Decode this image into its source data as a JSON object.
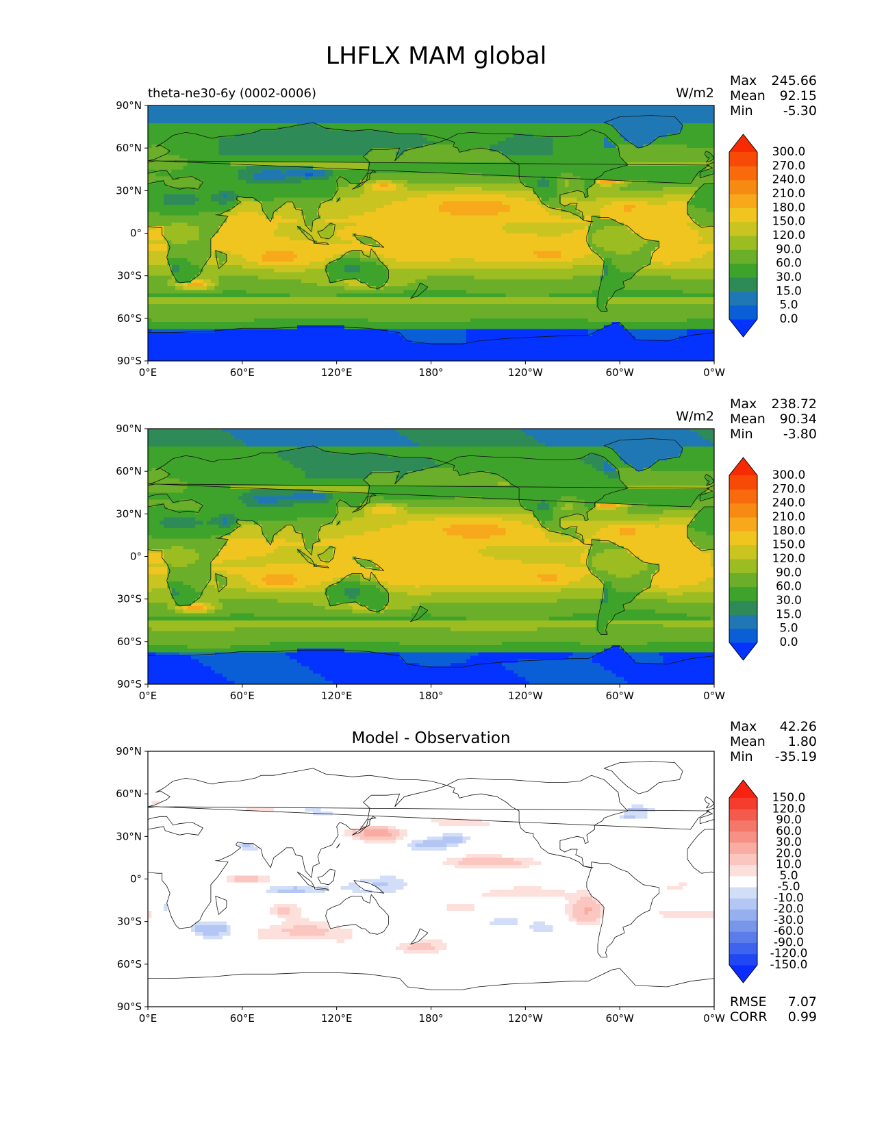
{
  "title": "LHFLX MAM global",
  "chart_data": [
    {
      "type": "heatmap",
      "panel": "test",
      "label": "theta-ne30-6y (0002-0006)",
      "title": "",
      "units": "W/m2",
      "stats": {
        "max_label": "Max",
        "max": "245.66",
        "mean_label": "Mean",
        "mean": "92.15",
        "min_label": "Min",
        "min": "-5.30"
      },
      "xticks": [
        "0°E",
        "60°E",
        "120°E",
        "180°",
        "120°W",
        "60°W",
        "0°W"
      ],
      "yticks": [
        "90°N",
        "60°N",
        "30°N",
        "0°",
        "30°S",
        "60°S",
        "90°S"
      ],
      "xlim": [
        0,
        360
      ],
      "ylim": [
        -90,
        90
      ],
      "colorbar": {
        "levels": [
          "0.0",
          "5.0",
          "15.0",
          "30.0",
          "60.0",
          "90.0",
          "120.0",
          "150.0",
          "180.0",
          "210.0",
          "240.0",
          "270.0",
          "300.0"
        ],
        "colors": [
          "#0432ff",
          "#0b5fd6",
          "#1f78b4",
          "#2e8b57",
          "#3ea32a",
          "#6aae2a",
          "#9cbd21",
          "#c9c41f",
          "#f0c520",
          "#f7a81b",
          "#f78a12",
          "#f86a0c",
          "#f74a06",
          "#f82a02"
        ]
      }
    },
    {
      "type": "heatmap",
      "panel": "reference",
      "label": "",
      "title": "",
      "units": "W/m2",
      "stats": {
        "max_label": "Max",
        "max": "238.72",
        "mean_label": "Mean",
        "mean": "90.34",
        "min_label": "Min",
        "min": "-3.80"
      },
      "xticks": [
        "0°E",
        "60°E",
        "120°E",
        "180°",
        "120°W",
        "60°W",
        "0°W"
      ],
      "yticks": [
        "90°N",
        "60°N",
        "30°N",
        "0°",
        "30°S",
        "60°S",
        "90°S"
      ],
      "xlim": [
        0,
        360
      ],
      "ylim": [
        -90,
        90
      ],
      "colorbar": {
        "levels": [
          "0.0",
          "5.0",
          "15.0",
          "30.0",
          "60.0",
          "90.0",
          "120.0",
          "150.0",
          "180.0",
          "210.0",
          "240.0",
          "270.0",
          "300.0"
        ],
        "colors": [
          "#0432ff",
          "#0b5fd6",
          "#1f78b4",
          "#2e8b57",
          "#3ea32a",
          "#6aae2a",
          "#9cbd21",
          "#c9c41f",
          "#f0c520",
          "#f7a81b",
          "#f78a12",
          "#f86a0c",
          "#f74a06",
          "#f82a02"
        ]
      }
    },
    {
      "type": "heatmap",
      "panel": "difference",
      "label": "",
      "title": "Model - Observation",
      "units": "",
      "stats": {
        "max_label": "Max",
        "max": "42.26",
        "mean_label": "Mean",
        "mean": "1.80",
        "min_label": "Min",
        "min": "-35.19"
      },
      "metrics": {
        "rmse_label": "RMSE",
        "rmse": "7.07",
        "corr_label": "CORR",
        "corr": "0.99"
      },
      "xticks": [
        "0°E",
        "60°E",
        "120°E",
        "180°",
        "120°W",
        "60°W",
        "0°W"
      ],
      "yticks": [
        "90°N",
        "60°N",
        "30°N",
        "0°",
        "30°S",
        "60°S",
        "90°S"
      ],
      "xlim": [
        0,
        360
      ],
      "ylim": [
        -90,
        90
      ],
      "colorbar": {
        "levels": [
          "-150.0",
          "-120.0",
          "-90.0",
          "-60.0",
          "-30.0",
          "-20.0",
          "-10.0",
          "-5.0",
          "5.0",
          "10.0",
          "20.0",
          "30.0",
          "60.0",
          "90.0",
          "120.0",
          "150.0"
        ],
        "colors": [
          "#0a2cff",
          "#2147f5",
          "#3e63ef",
          "#5a7de9",
          "#7897ea",
          "#96afee",
          "#b4c6f3",
          "#d2ddf8",
          "#ffffff",
          "#fde0dc",
          "#fbc6bf",
          "#f9aca2",
          "#f79186",
          "#f5776a",
          "#f45b4d",
          "#f53d2e",
          "#f72310"
        ]
      }
    }
  ]
}
